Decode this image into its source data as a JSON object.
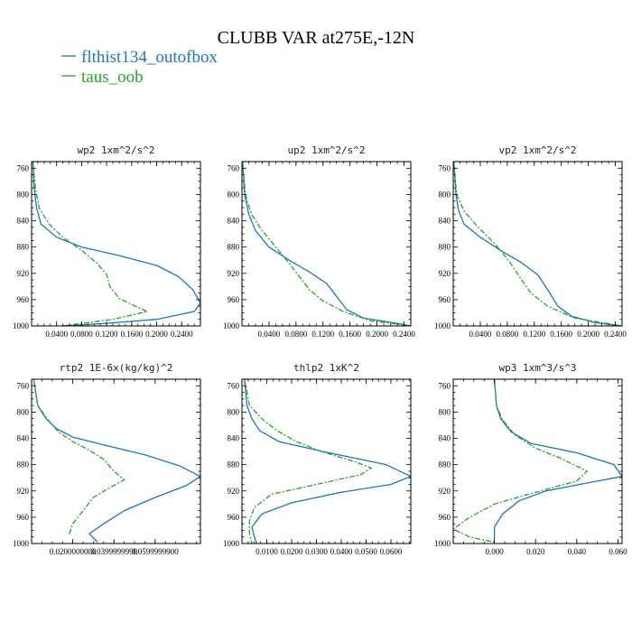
{
  "figure": {
    "title": "CLUBB VAR at275E,-12N"
  },
  "legend": [
    {
      "label": "flthist134_outofbox",
      "color": "#1f77b4",
      "style": "solid"
    },
    {
      "label": "taus_oob",
      "color": "#2ca02c",
      "style": "dashdot"
    }
  ],
  "chart_data": [
    {
      "type": "line",
      "title": "wp2   1xm^2/s^2",
      "xlim": [
        0,
        0.27
      ],
      "ylim": [
        1000,
        750
      ],
      "y_ticks": [
        760,
        800,
        840,
        880,
        920,
        960,
        1000
      ],
      "x_ticks": [
        "0.0400",
        "0.0800",
        "0.1200",
        "0.1600",
        "0.2000",
        "0.2400"
      ],
      "x_tick_values": [
        0.04,
        0.08,
        0.12,
        0.16,
        0.2,
        0.24
      ],
      "series": [
        {
          "name": "flthist134_outofbox",
          "points": [
            [
              0.002,
              750
            ],
            [
              0.004,
              790
            ],
            [
              0.008,
              820
            ],
            [
              0.015,
              845
            ],
            [
              0.04,
              865
            ],
            [
              0.08,
              880
            ],
            [
              0.14,
              893
            ],
            [
              0.2,
              908
            ],
            [
              0.235,
              925
            ],
            [
              0.258,
              945
            ],
            [
              0.27,
              965
            ],
            [
              0.26,
              978
            ],
            [
              0.2,
              990
            ],
            [
              0.12,
              996
            ],
            [
              0.05,
              1000
            ]
          ]
        },
        {
          "name": "taus_oob",
          "points": [
            [
              0.002,
              750
            ],
            [
              0.006,
              790
            ],
            [
              0.012,
              820
            ],
            [
              0.028,
              845
            ],
            [
              0.05,
              865
            ],
            [
              0.08,
              885
            ],
            [
              0.105,
              905
            ],
            [
              0.12,
              922
            ],
            [
              0.125,
              940
            ],
            [
              0.14,
              958
            ],
            [
              0.17,
              972
            ],
            [
              0.185,
              978
            ],
            [
              0.13,
              990
            ],
            [
              0.05,
              1000
            ]
          ]
        }
      ]
    },
    {
      "type": "line",
      "title": "up2   1xm^2/s^2",
      "xlim": [
        0,
        0.25
      ],
      "ylim": [
        1000,
        750
      ],
      "y_ticks": [
        760,
        800,
        840,
        880,
        920,
        960,
        1000
      ],
      "x_ticks": [
        "0.0400",
        "0.0800",
        "0.1200",
        "0.1600",
        "0.2000",
        "0.2400"
      ],
      "x_tick_values": [
        0.04,
        0.08,
        0.12,
        0.16,
        0.2,
        0.24
      ],
      "series": [
        {
          "name": "flthist134_outofbox",
          "points": [
            [
              0.001,
              750
            ],
            [
              0.004,
              800
            ],
            [
              0.01,
              830
            ],
            [
              0.02,
              855
            ],
            [
              0.04,
              880
            ],
            [
              0.07,
              900
            ],
            [
              0.1,
              918
            ],
            [
              0.125,
              935
            ],
            [
              0.14,
              955
            ],
            [
              0.155,
              975
            ],
            [
              0.18,
              988
            ],
            [
              0.23,
              996
            ],
            [
              0.25,
              1000
            ]
          ]
        },
        {
          "name": "taus_oob",
          "points": [
            [
              0.001,
              750
            ],
            [
              0.005,
              800
            ],
            [
              0.014,
              830
            ],
            [
              0.03,
              855
            ],
            [
              0.05,
              880
            ],
            [
              0.07,
              905
            ],
            [
              0.085,
              925
            ],
            [
              0.1,
              945
            ],
            [
              0.12,
              962
            ],
            [
              0.15,
              978
            ],
            [
              0.19,
              992
            ],
            [
              0.25,
              1000
            ]
          ]
        }
      ]
    },
    {
      "type": "line",
      "title": "vp2   1xm^2/s^2",
      "xlim": [
        0,
        0.25
      ],
      "ylim": [
        1000,
        750
      ],
      "y_ticks": [
        760,
        800,
        840,
        880,
        920,
        960,
        1000
      ],
      "x_ticks": [
        "0.0400",
        "0.0800",
        "0.1200",
        "0.1600",
        "0.2000",
        "0.2400"
      ],
      "x_tick_values": [
        0.04,
        0.08,
        0.12,
        0.16,
        0.2,
        0.24
      ],
      "series": [
        {
          "name": "flthist134_outofbox",
          "points": [
            [
              0.001,
              750
            ],
            [
              0.004,
              800
            ],
            [
              0.008,
              825
            ],
            [
              0.016,
              845
            ],
            [
              0.04,
              865
            ],
            [
              0.07,
              885
            ],
            [
              0.1,
              903
            ],
            [
              0.125,
              922
            ],
            [
              0.14,
              945
            ],
            [
              0.155,
              970
            ],
            [
              0.175,
              985
            ],
            [
              0.21,
              995
            ],
            [
              0.25,
              1000
            ]
          ]
        },
        {
          "name": "taus_oob",
          "points": [
            [
              0.001,
              750
            ],
            [
              0.005,
              800
            ],
            [
              0.016,
              825
            ],
            [
              0.035,
              848
            ],
            [
              0.055,
              868
            ],
            [
              0.07,
              885
            ],
            [
              0.085,
              905
            ],
            [
              0.1,
              928
            ],
            [
              0.115,
              950
            ],
            [
              0.14,
              970
            ],
            [
              0.18,
              988
            ],
            [
              0.25,
              1000
            ]
          ]
        }
      ]
    },
    {
      "type": "line",
      "title": "rtp2   1E-6x(kg/kg)^2",
      "xlim": [
        0,
        0.082
      ],
      "ylim": [
        1000,
        750
      ],
      "y_ticks": [
        760,
        800,
        840,
        880,
        920,
        960,
        1000
      ],
      "x_ticks": [
        "0.0200000000",
        "0.0399999990",
        "0.0599999900"
      ],
      "x_tick_values": [
        0.02,
        0.04,
        0.06
      ],
      "series": [
        {
          "name": "flthist134_outofbox",
          "points": [
            [
              0.001,
              750
            ],
            [
              0.003,
              790
            ],
            [
              0.007,
              810
            ],
            [
              0.012,
              825
            ],
            [
              0.02,
              838
            ],
            [
              0.035,
              850
            ],
            [
              0.055,
              865
            ],
            [
              0.072,
              882
            ],
            [
              0.082,
              898
            ],
            [
              0.075,
              912
            ],
            [
              0.06,
              930
            ],
            [
              0.045,
              950
            ],
            [
              0.035,
              970
            ],
            [
              0.028,
              985
            ],
            [
              0.032,
              998
            ]
          ]
        },
        {
          "name": "taus_oob",
          "points": [
            [
              0.001,
              750
            ],
            [
              0.003,
              790
            ],
            [
              0.008,
              812
            ],
            [
              0.013,
              830
            ],
            [
              0.02,
              845
            ],
            [
              0.028,
              858
            ],
            [
              0.035,
              872
            ],
            [
              0.04,
              890
            ],
            [
              0.045,
              903
            ],
            [
              0.038,
              915
            ],
            [
              0.03,
              930
            ],
            [
              0.025,
              950
            ],
            [
              0.02,
              970
            ],
            [
              0.018,
              988
            ]
          ]
        }
      ]
    },
    {
      "type": "line",
      "title": "thlp2   1xK^2",
      "xlim": [
        0,
        0.068
      ],
      "ylim": [
        1000,
        750
      ],
      "y_ticks": [
        760,
        800,
        840,
        880,
        920,
        960,
        1000
      ],
      "x_ticks": [
        "0.0100",
        "0.0200",
        "0.0300",
        "0.0400",
        "0.0500",
        "0.0600"
      ],
      "x_tick_values": [
        0.01,
        0.02,
        0.03,
        0.04,
        0.05,
        0.06
      ],
      "series": [
        {
          "name": "flthist134_outofbox",
          "points": [
            [
              0.001,
              750
            ],
            [
              0.002,
              790
            ],
            [
              0.004,
              810
            ],
            [
              0.007,
              828
            ],
            [
              0.015,
              845
            ],
            [
              0.035,
              862
            ],
            [
              0.058,
              880
            ],
            [
              0.068,
              898
            ],
            [
              0.06,
              910
            ],
            [
              0.04,
              922
            ],
            [
              0.02,
              938
            ],
            [
              0.008,
              955
            ],
            [
              0.004,
              975
            ],
            [
              0.005,
              990
            ],
            [
              0.006,
              1000
            ]
          ]
        },
        {
          "name": "taus_oob",
          "points": [
            [
              0.001,
              750
            ],
            [
              0.003,
              790
            ],
            [
              0.008,
              810
            ],
            [
              0.014,
              828
            ],
            [
              0.022,
              845
            ],
            [
              0.032,
              860
            ],
            [
              0.045,
              875
            ],
            [
              0.052,
              885
            ],
            [
              0.048,
              895
            ],
            [
              0.03,
              910
            ],
            [
              0.012,
              925
            ],
            [
              0.005,
              945
            ],
            [
              0.003,
              965
            ],
            [
              0.003,
              985
            ],
            [
              0.004,
              1000
            ]
          ]
        }
      ]
    },
    {
      "type": "line",
      "title": "wp3   1xm^3/s^3",
      "xlim": [
        -0.02,
        0.062
      ],
      "ylim": [
        1000,
        750
      ],
      "y_ticks": [
        760,
        800,
        840,
        880,
        920,
        960,
        1000
      ],
      "x_ticks": [
        "0.000",
        "0.020",
        "0.040",
        "0.060"
      ],
      "x_tick_values": [
        0.0,
        0.02,
        0.04,
        0.06
      ],
      "series": [
        {
          "name": "flthist134_outofbox",
          "points": [
            [
              0.0,
              750
            ],
            [
              0.001,
              790
            ],
            [
              0.003,
              810
            ],
            [
              0.008,
              830
            ],
            [
              0.018,
              848
            ],
            [
              0.04,
              862
            ],
            [
              0.058,
              880
            ],
            [
              0.062,
              898
            ],
            [
              0.045,
              908
            ],
            [
              0.025,
              920
            ],
            [
              0.012,
              935
            ],
            [
              0.004,
              955
            ],
            [
              0.0,
              975
            ],
            [
              0.0,
              995
            ]
          ]
        },
        {
          "name": "taus_oob",
          "points": [
            [
              0.0,
              750
            ],
            [
              0.001,
              790
            ],
            [
              0.004,
              812
            ],
            [
              0.01,
              835
            ],
            [
              0.02,
              855
            ],
            [
              0.032,
              870
            ],
            [
              0.045,
              890
            ],
            [
              0.04,
              905
            ],
            [
              0.02,
              922
            ],
            [
              0.0,
              940
            ],
            [
              -0.012,
              960
            ],
            [
              -0.02,
              978
            ],
            [
              -0.012,
              990
            ],
            [
              0.0,
              998
            ]
          ]
        }
      ]
    }
  ]
}
